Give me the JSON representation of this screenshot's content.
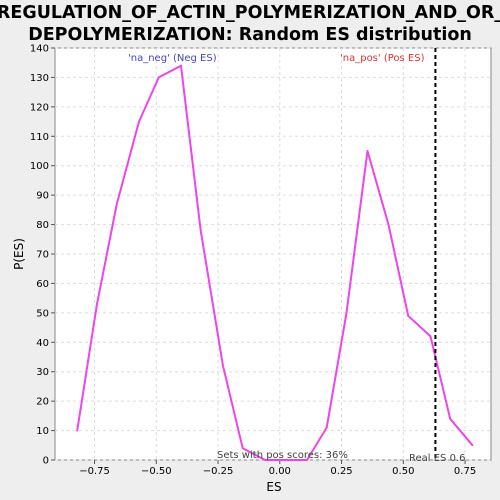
{
  "chart_data": {
    "type": "line",
    "title_line1": "REGULATION_OF_ACTIN_POLYMERIZATION_AND_OR_",
    "title_line2": "DEPOLYMERIZATION: Random ES distribution",
    "xlabel": "ES",
    "ylabel": "P(ES)",
    "xlim": [
      -0.91,
      0.855
    ],
    "ylim": [
      0,
      140
    ],
    "x_ticks": [
      -0.75,
      -0.5,
      -0.25,
      0.0,
      0.25,
      0.5,
      0.75
    ],
    "x_tick_labels": [
      "−0.75",
      "−0.50",
      "−0.25",
      "0.00",
      "0.25",
      "0.50",
      "0.75"
    ],
    "y_ticks": [
      0,
      10,
      20,
      30,
      40,
      50,
      60,
      70,
      80,
      90,
      100,
      110,
      120,
      130,
      140
    ],
    "y_tick_labels": [
      "0",
      "10",
      "20",
      "30",
      "40",
      "50",
      "60",
      "70",
      "80",
      "90",
      "100",
      "110",
      "120",
      "130",
      "140"
    ],
    "grid": true,
    "series": [
      {
        "color": "#ee44ee",
        "x": [
          -0.82,
          -0.74,
          -0.66,
          -0.57,
          -0.49,
          -0.4,
          -0.32,
          -0.23,
          -0.15,
          -0.06,
          0.02,
          0.11,
          0.19,
          0.27,
          0.355,
          0.44,
          0.52,
          0.61,
          0.69,
          0.78
        ],
        "y": [
          10,
          53,
          87,
          115,
          130,
          134,
          78,
          32,
          4,
          0,
          0,
          0,
          11,
          50,
          105,
          80,
          49,
          42,
          14,
          5
        ]
      }
    ],
    "reference_line": {
      "x": 0.63,
      "color": "#000000",
      "style": "dashed",
      "label": "Real ES 0.6"
    },
    "annotations": {
      "neg_label": "'na_neg' (Neg ES)",
      "neg_color": "#4444cc",
      "pos_label": "'na_pos' (Pos ES)",
      "pos_color": "#dd3333",
      "pos_scores_note": "Sets with pos scores: 36%"
    }
  }
}
